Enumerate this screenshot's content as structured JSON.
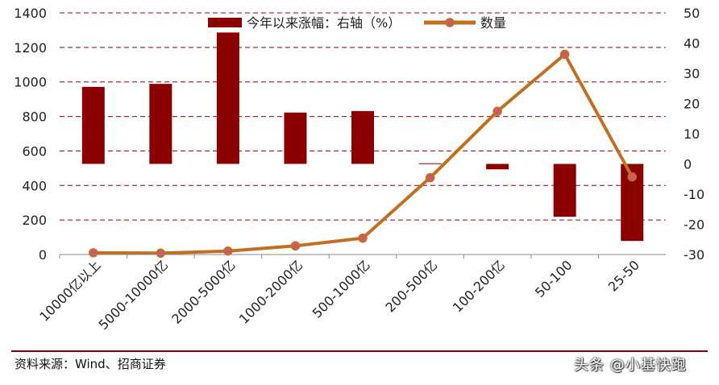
{
  "chart_data": {
    "type": "bar+line",
    "categories": [
      "10000亿以上",
      "5000-10000亿",
      "2000-5000亿",
      "1000-2000亿",
      "500-1000亿",
      "200-500亿",
      "100-200亿",
      "50-100",
      "25-50"
    ],
    "series": [
      {
        "name": "今年以来涨幅：右轴（%）",
        "type": "bar",
        "axis": "right",
        "color": "#8B0000",
        "values": [
          25.5,
          26.5,
          43.5,
          17,
          17.5,
          0.2,
          -1.8,
          -17.5,
          -25.5
        ]
      },
      {
        "name": "数量",
        "type": "line",
        "axis": "left",
        "color": "#C07020",
        "marker_color": "#CD5C5C",
        "values": [
          10,
          8,
          20,
          50,
          95,
          445,
          830,
          1160,
          450
        ]
      }
    ],
    "left_axis": {
      "ylim": [
        0,
        1400
      ],
      "ticks": [
        "0",
        "200",
        "400",
        "600",
        "800",
        "1000",
        "1200",
        "1400"
      ]
    },
    "right_axis": {
      "ylim": [
        -30,
        50
      ],
      "ticks": [
        "-30",
        "-20",
        "-10",
        "0",
        "10",
        "20",
        "30",
        "40",
        "50"
      ]
    },
    "grid": "horizontal-dashed",
    "legend_position": "top-center"
  },
  "source": "资料来源：Wind、招商证券",
  "watermark": "头条 @小基快跑"
}
